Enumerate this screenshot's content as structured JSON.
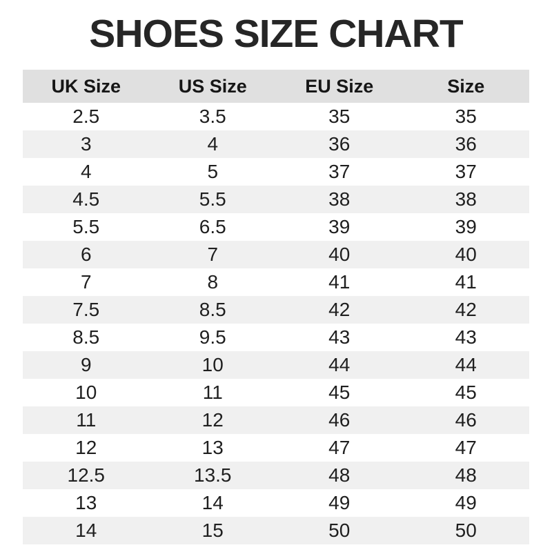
{
  "title": "SHOES SIZE CHART",
  "chart_data": {
    "type": "table",
    "title": "SHOES SIZE CHART",
    "columns": [
      "UK Size",
      "US Size",
      "EU Size",
      "Size"
    ],
    "rows": [
      [
        "2.5",
        "3.5",
        "35",
        "35"
      ],
      [
        "3",
        "4",
        "36",
        "36"
      ],
      [
        "4",
        "5",
        "37",
        "37"
      ],
      [
        "4.5",
        "5.5",
        "38",
        "38"
      ],
      [
        "5.5",
        "6.5",
        "39",
        "39"
      ],
      [
        "6",
        "7",
        "40",
        "40"
      ],
      [
        "7",
        "8",
        "41",
        "41"
      ],
      [
        "7.5",
        "8.5",
        "42",
        "42"
      ],
      [
        "8.5",
        "9.5",
        "43",
        "43"
      ],
      [
        "9",
        "10",
        "44",
        "44"
      ],
      [
        "10",
        "11",
        "45",
        "45"
      ],
      [
        "11",
        "12",
        "46",
        "46"
      ],
      [
        "12",
        "13",
        "47",
        "47"
      ],
      [
        "12.5",
        "13.5",
        "48",
        "48"
      ],
      [
        "13",
        "14",
        "49",
        "49"
      ],
      [
        "14",
        "15",
        "50",
        "50"
      ]
    ],
    "layout": {
      "legend": "none",
      "grid": "off",
      "row_striping": "alternating, first body row white, even body rows shaded"
    },
    "colors": {
      "title_color": "#262626",
      "header_bg": "#e0e0e0",
      "row_bg": "#ffffff",
      "alt_row_bg": "#f0f0f0",
      "text_color": "#1f1f1f"
    }
  }
}
